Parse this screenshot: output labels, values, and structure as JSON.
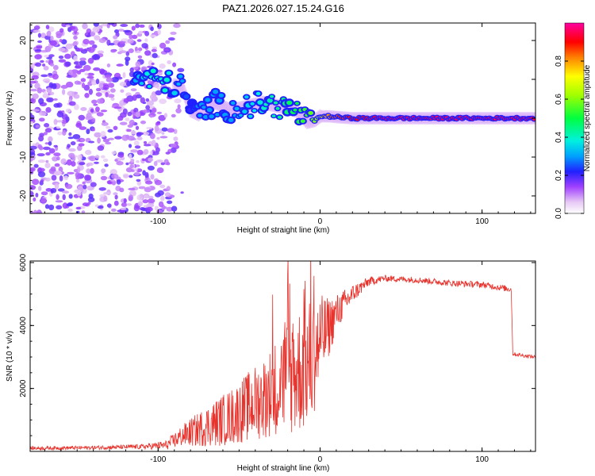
{
  "chart_data": [
    {
      "type": "heatmap",
      "title": "PAZ1.2026.027.15.24.G16",
      "xlabel": "Height of straight line (km)",
      "ylabel": "Frequency (Hz)",
      "xlim": [
        -179,
        133
      ],
      "ylim": [
        -24.5,
        24.5
      ],
      "xticks": [
        "-100",
        "0",
        "100"
      ],
      "xtick_values": [
        -100,
        0,
        100
      ],
      "yticks": [
        "-20",
        "-10",
        "0",
        "10",
        "20"
      ],
      "ytick_values": [
        -20,
        -10,
        0,
        10,
        20
      ],
      "colorbar": {
        "label": "Normalized spectral amplitude",
        "range": [
          0,
          1
        ],
        "ticks": [
          "0.0",
          "0.2",
          "0.4",
          "0.6",
          "0.8"
        ],
        "tick_values": [
          0.0,
          0.2,
          0.4,
          0.6,
          0.8
        ]
      },
      "ridge": {
        "x": [
          -115,
          -105,
          -95,
          -85,
          -80,
          -75,
          -65,
          -55,
          -45,
          -35,
          -25,
          -15,
          -8,
          -3,
          0,
          5,
          10,
          20,
          40,
          60,
          80,
          100,
          120,
          133
        ],
        "freq": [
          10,
          10,
          9,
          8,
          2,
          1,
          4,
          2,
          3,
          4,
          3,
          2,
          -1,
          -0.5,
          0.5,
          0.5,
          0.3,
          0,
          0,
          0,
          0,
          0,
          0,
          0
        ],
        "amplitude": [
          0.3,
          0.4,
          0.4,
          0.3,
          0.2,
          0.3,
          0.3,
          0.3,
          0.35,
          0.4,
          0.45,
          0.5,
          0.55,
          0.6,
          0.7,
          0.8,
          0.85,
          0.9,
          0.95,
          0.95,
          0.95,
          0.95,
          0.95,
          0.95
        ]
      }
    },
    {
      "type": "line",
      "xlabel": "Height of straight line (km)",
      "ylabel": "SNR (10 * v/v)",
      "xlim": [
        -179,
        133
      ],
      "ylim": [
        0,
        6050
      ],
      "xticks": [
        "-100",
        "0",
        "100"
      ],
      "xtick_values": [
        -100,
        0,
        100
      ],
      "yticks": [
        "2000",
        "4000",
        "6000"
      ],
      "ytick_values": [
        2000,
        4000,
        6000
      ],
      "series": [
        {
          "name": "SNR",
          "color": "#e8322c",
          "envelope_x": [
            -179,
            -140,
            -110,
            -95,
            -85,
            -75,
            -65,
            -55,
            -45,
            -35,
            -28,
            -22,
            -15,
            -10,
            -5,
            0,
            5,
            10,
            20,
            30,
            40,
            60,
            80,
            100,
            118,
            119,
            125,
            133
          ],
          "envelope_mid": [
            100,
            120,
            150,
            200,
            500,
            700,
            900,
            1100,
            1400,
            1700,
            2000,
            2300,
            2500,
            2700,
            2900,
            3500,
            3900,
            4400,
            5000,
            5400,
            5500,
            5450,
            5350,
            5300,
            5150,
            3100,
            3050,
            3000
          ],
          "envelope_amp": [
            60,
            60,
            80,
            150,
            350,
            550,
            750,
            900,
            1100,
            1300,
            1500,
            1800,
            2000,
            2100,
            2000,
            1500,
            1000,
            600,
            300,
            150,
            100,
            100,
            100,
            100,
            100,
            60,
            60,
            60
          ]
        }
      ]
    }
  ]
}
